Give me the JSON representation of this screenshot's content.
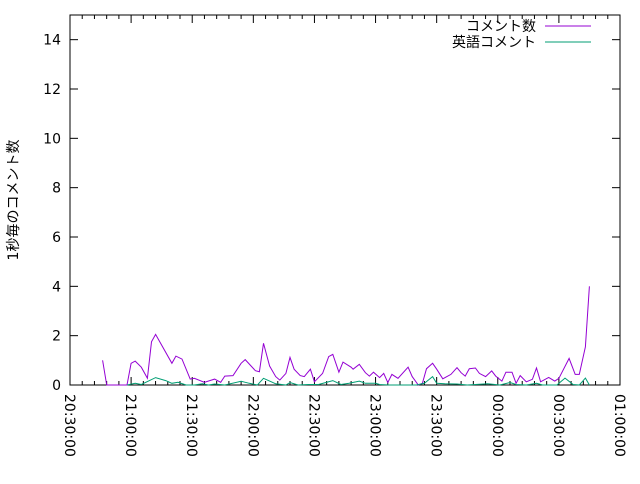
{
  "chart_data": {
    "type": "line",
    "title": "",
    "xlabel": "",
    "ylabel": "1秒毎のコメント数",
    "xlim": [
      "20:30:00",
      "01:00:00"
    ],
    "ylim": [
      0,
      15
    ],
    "x_ticks": [
      "20:30:00",
      "21:00:00",
      "21:30:00",
      "22:00:00",
      "22:30:00",
      "23:00:00",
      "23:30:00",
      "00:00:00",
      "00:30:00",
      "01:00:00"
    ],
    "y_ticks": [
      "0",
      "2",
      "4",
      "6",
      "8",
      "10",
      "12",
      "14"
    ],
    "grid": false,
    "legend_position": "top-right",
    "series": [
      {
        "name": "コメント数",
        "color": "#9400d3",
        "points": [
          [
            "20:46",
            1.0
          ],
          [
            "20:48",
            0
          ],
          [
            "20:58",
            0
          ],
          [
            "21:00",
            0.88
          ],
          [
            "21:02",
            0.97
          ],
          [
            "21:05",
            0.72
          ],
          [
            "21:08",
            0.27
          ],
          [
            "21:10",
            1.75
          ],
          [
            "21:12",
            2.05
          ],
          [
            "21:20",
            0.88
          ],
          [
            "21:22",
            1.17
          ],
          [
            "21:25",
            1.05
          ],
          [
            "21:29",
            0.24
          ],
          [
            "21:31",
            0.27
          ],
          [
            "21:36",
            0.11
          ],
          [
            "21:41",
            0.24
          ],
          [
            "21:44",
            0.11
          ],
          [
            "21:46",
            0.36
          ],
          [
            "21:50",
            0.38
          ],
          [
            "21:54",
            0.88
          ],
          [
            "21:56",
            1.03
          ],
          [
            "22:01",
            0.58
          ],
          [
            "22:03",
            0.54
          ],
          [
            "22:05",
            1.69
          ],
          [
            "22:08",
            0.77
          ],
          [
            "22:11",
            0.34
          ],
          [
            "22:13",
            0.2
          ],
          [
            "22:16",
            0.47
          ],
          [
            "22:18",
            1.12
          ],
          [
            "22:20",
            0.64
          ],
          [
            "22:23",
            0.38
          ],
          [
            "22:25",
            0.34
          ],
          [
            "22:28",
            0.64
          ],
          [
            "22:30",
            0.13
          ],
          [
            "22:34",
            0.47
          ],
          [
            "22:37",
            1.15
          ],
          [
            "22:39",
            1.24
          ],
          [
            "22:42",
            0.52
          ],
          [
            "22:44",
            0.93
          ],
          [
            "22:48",
            0.72
          ],
          [
            "22:49",
            0.64
          ],
          [
            "22:52",
            0.84
          ],
          [
            "22:55",
            0.5
          ],
          [
            "22:57",
            0.36
          ],
          [
            "22:59",
            0.52
          ],
          [
            "23:02",
            0.3
          ],
          [
            "23:04",
            0.47
          ],
          [
            "23:06",
            0.1
          ],
          [
            "23:08",
            0.43
          ],
          [
            "23:11",
            0.27
          ],
          [
            "23:16",
            0.72
          ],
          [
            "23:18",
            0.34
          ],
          [
            "23:21",
            0
          ],
          [
            "23:23",
            0.07
          ],
          [
            "23:25",
            0.66
          ],
          [
            "23:28",
            0.88
          ],
          [
            "23:30",
            0.64
          ],
          [
            "23:33",
            0.25
          ],
          [
            "23:35",
            0.34
          ],
          [
            "23:37",
            0.43
          ],
          [
            "23:40",
            0.7
          ],
          [
            "23:42",
            0.5
          ],
          [
            "23:44",
            0.36
          ],
          [
            "23:46",
            0.66
          ],
          [
            "23:49",
            0.69
          ],
          [
            "23:51",
            0.47
          ],
          [
            "23:54",
            0.34
          ],
          [
            "23:57",
            0.57
          ],
          [
            "23:59",
            0.36
          ],
          [
            "00:02",
            0.16
          ],
          [
            "00:04",
            0.52
          ],
          [
            "00:07",
            0.52
          ],
          [
            "00:09",
            0.07
          ],
          [
            "00:11",
            0.38
          ],
          [
            "00:14",
            0.13
          ],
          [
            "00:17",
            0.23
          ],
          [
            "00:19",
            0.69
          ],
          [
            "00:21",
            0.13
          ],
          [
            "00:25",
            0.31
          ],
          [
            "00:28",
            0.16
          ],
          [
            "00:30",
            0.27
          ],
          [
            "00:35",
            1.08
          ],
          [
            "00:38",
            0.43
          ],
          [
            "00:40",
            0.43
          ],
          [
            "00:43",
            1.55
          ],
          [
            "00:45",
            4.0
          ]
        ]
      },
      {
        "name": "英語コメント",
        "color": "#009e73",
        "points": [
          [
            "20:58",
            0
          ],
          [
            "21:02",
            0.07
          ],
          [
            "21:05",
            0.02
          ],
          [
            "21:12",
            0.3
          ],
          [
            "21:17",
            0.18
          ],
          [
            "21:20",
            0.07
          ],
          [
            "21:23",
            0.11
          ],
          [
            "21:27",
            0
          ],
          [
            "21:31",
            0
          ],
          [
            "21:35",
            0.05
          ],
          [
            "21:38",
            0
          ],
          [
            "21:41",
            0.04
          ],
          [
            "21:46",
            0
          ],
          [
            "21:54",
            0.15
          ],
          [
            "21:58",
            0.07
          ],
          [
            "22:02",
            0
          ],
          [
            "22:05",
            0.27
          ],
          [
            "22:11",
            0.05
          ],
          [
            "22:16",
            0
          ],
          [
            "22:18",
            0.1
          ],
          [
            "22:22",
            0
          ],
          [
            "22:27",
            0.02
          ],
          [
            "22:32",
            0.02
          ],
          [
            "22:39",
            0.18
          ],
          [
            "22:43",
            0.02
          ],
          [
            "22:47",
            0.07
          ],
          [
            "22:52",
            0.16
          ],
          [
            "22:55",
            0.07
          ],
          [
            "23:00",
            0.07
          ],
          [
            "23:02",
            0.02
          ],
          [
            "23:07",
            0
          ],
          [
            "23:15",
            0
          ],
          [
            "23:20",
            0
          ],
          [
            "23:24",
            0.07
          ],
          [
            "23:28",
            0.34
          ],
          [
            "23:30",
            0.07
          ],
          [
            "23:34",
            0.05
          ],
          [
            "23:40",
            0.04
          ],
          [
            "23:45",
            0
          ],
          [
            "23:55",
            0.05
          ],
          [
            "00:01",
            0
          ],
          [
            "00:06",
            0.1
          ],
          [
            "00:09",
            0.02
          ],
          [
            "00:14",
            0
          ],
          [
            "00:19",
            0.07
          ],
          [
            "00:22",
            0
          ],
          [
            "00:29",
            0
          ],
          [
            "00:33",
            0.28
          ],
          [
            "00:37",
            0.02
          ],
          [
            "00:40",
            0
          ],
          [
            "00:43",
            0.28
          ],
          [
            "00:45",
            0
          ]
        ]
      }
    ]
  }
}
